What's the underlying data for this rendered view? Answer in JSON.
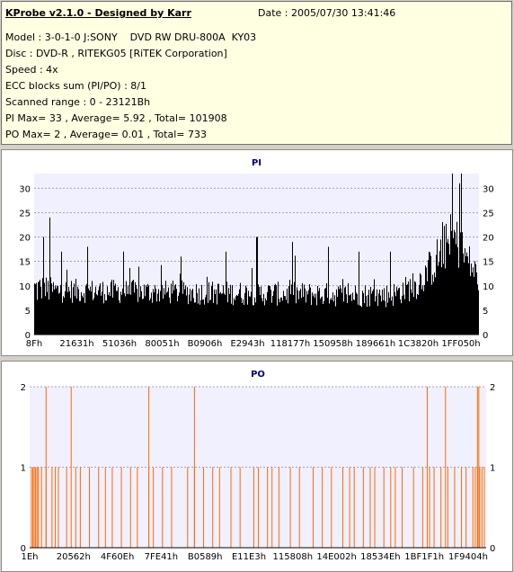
{
  "header": {
    "title": "KProbe v2.1.0 - Designed by Karr",
    "date": "Date : 2005/07/30 13:41:46",
    "lines": [
      "Model : 3-0-1-0 J:SONY    DVD RW DRU-800A  KY03",
      "Disc : DVD-R , RITEKG05 [RiTEK Corporation]",
      "Speed : 4x",
      "ECC blocks sum (PI/PO) : 8/1",
      "Scanned range : 0 - 23121Bh",
      "PI Max= 33 , Average= 5.92 , Total= 101908",
      "PO Max= 2 , Average= 0.01 , Total= 733"
    ]
  },
  "colors": {
    "info_bg": "#ffffe1",
    "plot_bg": "#f0f0ff",
    "pi_bar": "#000000",
    "po_bar": "#ff6a00",
    "title": "#000080"
  },
  "chart_data": [
    {
      "type": "bar",
      "title": "PI",
      "ylim": [
        0,
        33
      ],
      "yticks": [
        0,
        5,
        10,
        15,
        20,
        25,
        30
      ],
      "xtick_labels": [
        "8Fh",
        "21631h",
        "51036h",
        "80051h",
        "B0906h",
        "E2943h",
        "118177h",
        "150958h",
        "189661h",
        "1C3820h",
        "1FF050h"
      ],
      "grid": true,
      "max": 33,
      "average": 5.92,
      "profile": [
        {
          "pos": 0.0,
          "base": 8,
          "spread": 7
        },
        {
          "pos": 0.05,
          "base": 8,
          "spread": 5
        },
        {
          "pos": 0.8,
          "base": 7,
          "spread": 5
        },
        {
          "pos": 0.86,
          "base": 9,
          "spread": 6
        },
        {
          "pos": 0.9,
          "base": 13,
          "spread": 9
        },
        {
          "pos": 0.94,
          "base": 18,
          "spread": 11
        },
        {
          "pos": 0.97,
          "base": 14,
          "spread": 9
        },
        {
          "pos": 1.0,
          "base": 10,
          "spread": 6
        }
      ],
      "peaks": [
        {
          "pos": 0.02,
          "value": 20
        },
        {
          "pos": 0.035,
          "value": 24
        },
        {
          "pos": 0.06,
          "value": 17
        },
        {
          "pos": 0.12,
          "value": 18
        },
        {
          "pos": 0.2,
          "value": 17
        },
        {
          "pos": 0.33,
          "value": 16
        },
        {
          "pos": 0.43,
          "value": 17
        },
        {
          "pos": 0.5,
          "value": 20
        },
        {
          "pos": 0.58,
          "value": 19
        },
        {
          "pos": 0.66,
          "value": 18
        },
        {
          "pos": 0.73,
          "value": 17
        },
        {
          "pos": 0.8,
          "value": 17
        },
        {
          "pos": 0.94,
          "value": 33
        },
        {
          "pos": 0.955,
          "value": 31
        },
        {
          "pos": 0.96,
          "value": 33
        }
      ]
    },
    {
      "type": "bar",
      "title": "PO",
      "ylim": [
        0,
        2
      ],
      "yticks": [
        0,
        1,
        2
      ],
      "xtick_labels": [
        "1Eh",
        "20562h",
        "4F60Eh",
        "7FE41h",
        "B0589h",
        "E11E3h",
        "115808h",
        "14E002h",
        "18534Eh",
        "1BF1F1h",
        "1F9404h"
      ],
      "grid": true,
      "max": 2,
      "average": 0.01,
      "ones": [
        0.003,
        0.006,
        0.009,
        0.012,
        0.015,
        0.018,
        0.025,
        0.035,
        0.048,
        0.055,
        0.062,
        0.08,
        0.1,
        0.11,
        0.13,
        0.15,
        0.165,
        0.18,
        0.2,
        0.22,
        0.235,
        0.26,
        0.27,
        0.29,
        0.31,
        0.345,
        0.36,
        0.38,
        0.4,
        0.415,
        0.44,
        0.46,
        0.49,
        0.5,
        0.52,
        0.53,
        0.545,
        0.57,
        0.59,
        0.62,
        0.64,
        0.66,
        0.685,
        0.7,
        0.71,
        0.73,
        0.745,
        0.755,
        0.775,
        0.79,
        0.8,
        0.815,
        0.84,
        0.86,
        0.875,
        0.885,
        0.9,
        0.915,
        0.93,
        0.945,
        0.955,
        0.97,
        0.975,
        0.98,
        0.985,
        0.99,
        0.995
      ],
      "twos": [
        0.035,
        0.09,
        0.26,
        0.36,
        0.87,
        0.91,
        0.98,
        0.983
      ]
    }
  ]
}
